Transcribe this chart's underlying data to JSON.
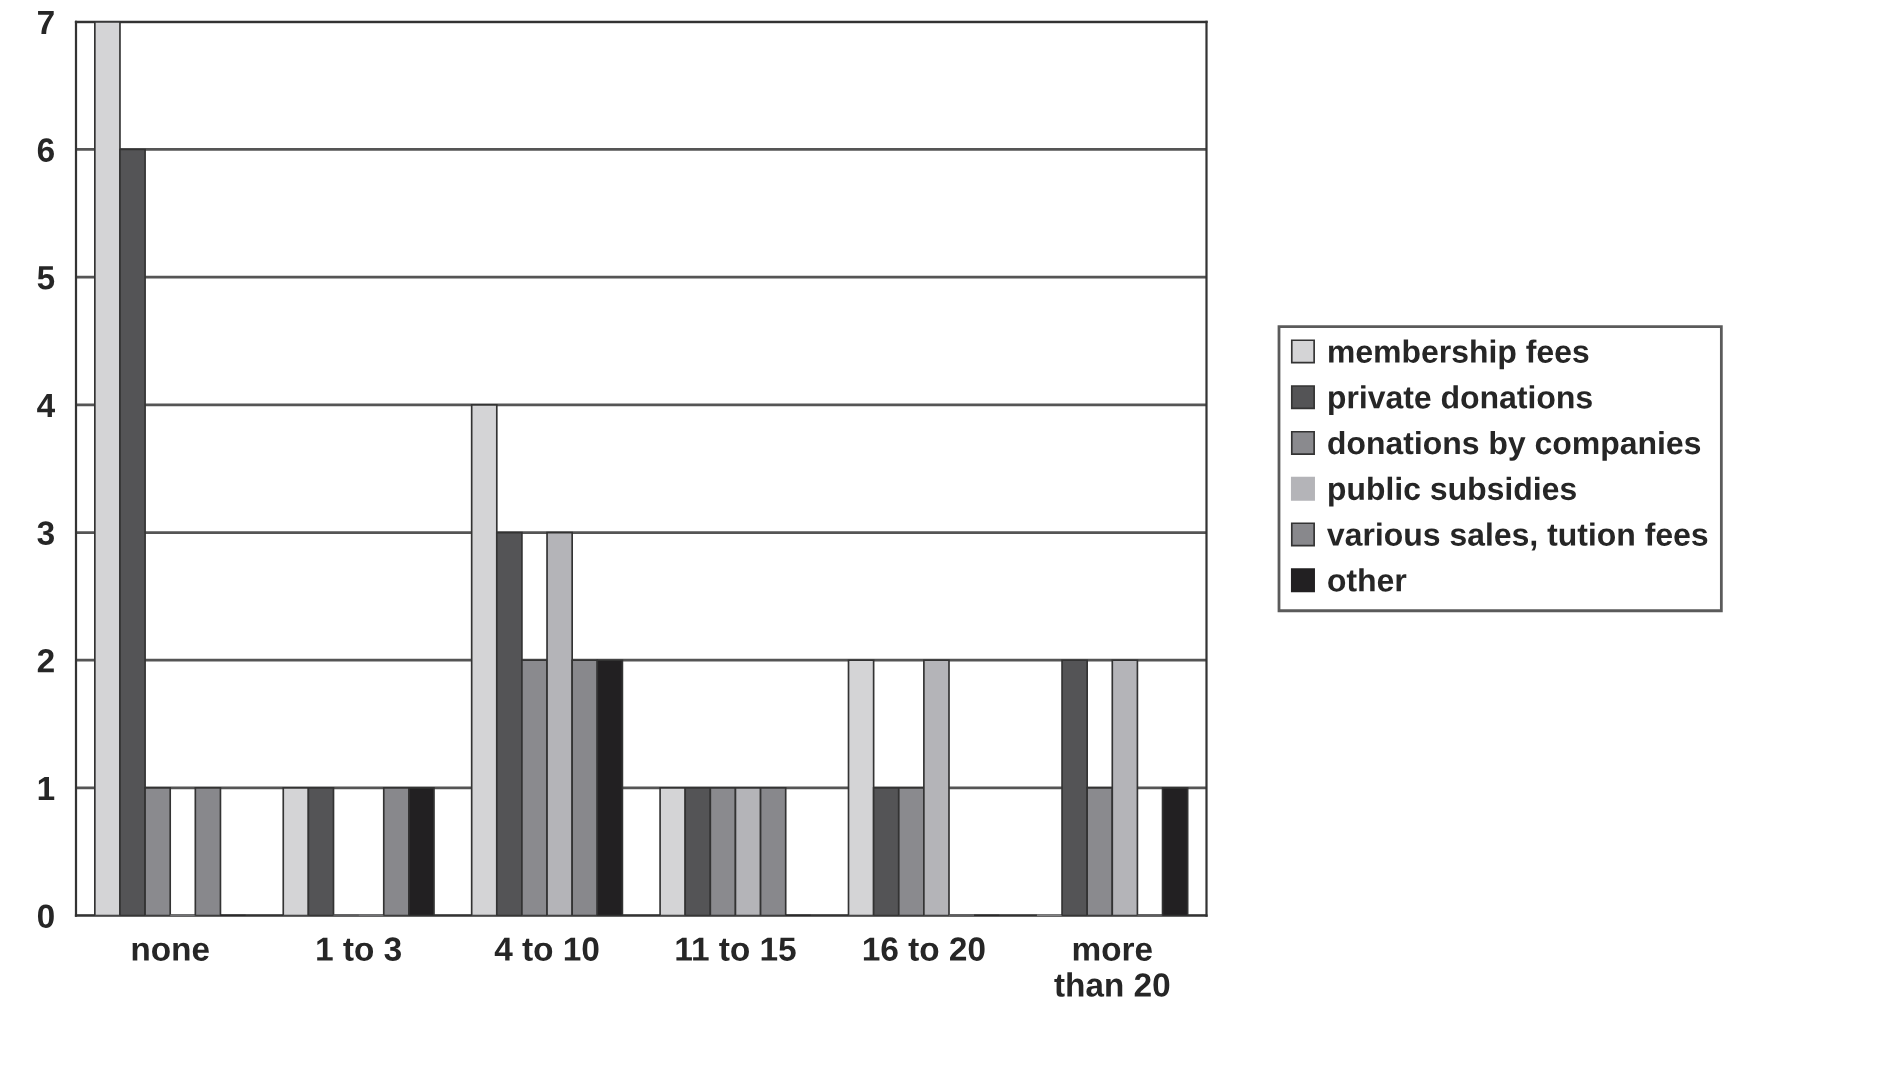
{
  "chart_data": {
    "type": "bar",
    "categories": [
      "none",
      "1 to 3",
      "4 to 10",
      "11 to 15",
      "16 to 20",
      "more\nthan 20"
    ],
    "series": [
      {
        "name": "membership fees",
        "color": "#d4d4d6",
        "values": [
          7,
          1,
          4,
          1,
          2,
          0
        ]
      },
      {
        "name": "private donations",
        "color": "#545456",
        "values": [
          6,
          1,
          3,
          1,
          1,
          2
        ]
      },
      {
        "name": "donations by companies",
        "color": "#8a8a8e",
        "values": [
          1,
          0,
          2,
          1,
          1,
          1
        ]
      },
      {
        "name": "public subsidies",
        "color": "#b4b4b8",
        "values": [
          0,
          0,
          3,
          1,
          2,
          2
        ]
      },
      {
        "name": "various sales, tution fees",
        "color": "#88888c",
        "values": [
          1,
          1,
          2,
          1,
          0,
          0
        ]
      },
      {
        "name": "other",
        "color": "#222022",
        "values": [
          0,
          1,
          2,
          0,
          0,
          1
        ]
      }
    ],
    "ylim": [
      0,
      7
    ],
    "yticks": [
      0,
      1,
      2,
      3,
      4,
      5,
      6,
      7
    ],
    "grid": "y",
    "legend": "right"
  }
}
